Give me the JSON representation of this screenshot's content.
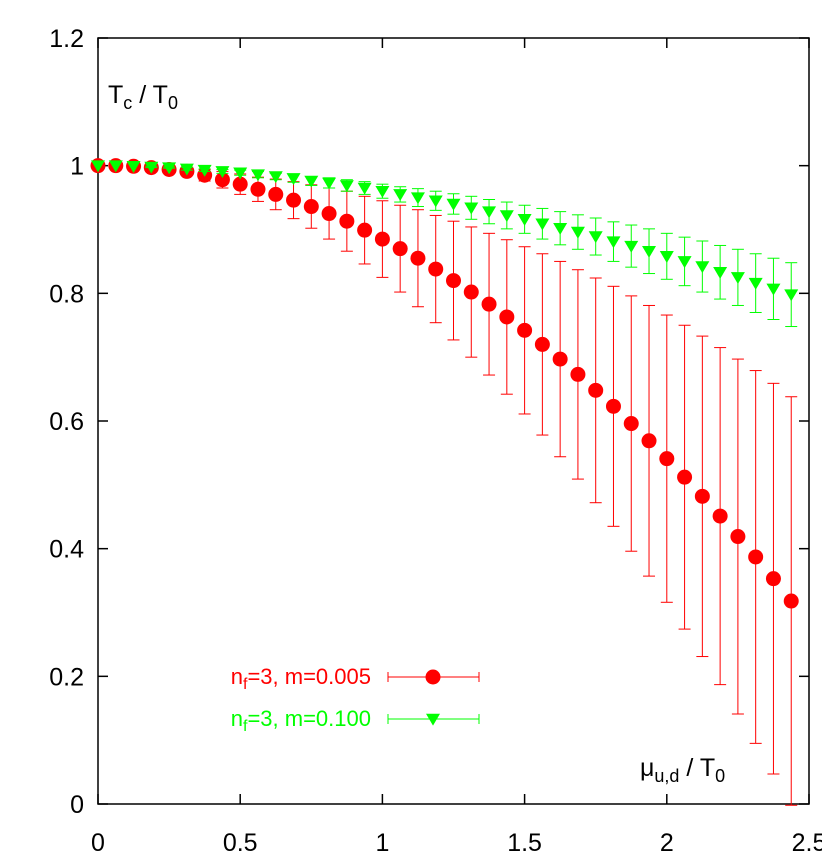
{
  "chart_data": {
    "type": "scatter",
    "ylabel": {
      "main": "T",
      "sub": "c",
      "sep": " / T",
      "sub2": "0"
    },
    "xlabel": {
      "main": "μ",
      "sub": "u,d",
      "sep": " / T",
      "sub2": "0"
    },
    "xlim": [
      0,
      2.5
    ],
    "ylim": [
      0,
      1.2
    ],
    "x_ticks": [
      "0",
      "0.5",
      "1",
      "1.5",
      "2",
      "2.5"
    ],
    "y_ticks": [
      "0",
      "0.2",
      "0.4",
      "0.6",
      "0.8",
      "1",
      "1.2"
    ],
    "x_tick_values": [
      0,
      0.5,
      1,
      1.5,
      2,
      2.5
    ],
    "y_tick_values": [
      0,
      0.2,
      0.4,
      0.6,
      0.8,
      1,
      1.2
    ],
    "grid": false,
    "legend_position": "bottom-left",
    "series": [
      {
        "name": "n_f=3, m=0.005",
        "legend_parts": {
          "a": "n",
          "sub": "f",
          "b": "=3, m=0.005"
        },
        "color": "#ff0000",
        "marker": "circle",
        "x": [
          0.0,
          0.0625,
          0.125,
          0.1875,
          0.25,
          0.3125,
          0.375,
          0.4375,
          0.5,
          0.5625,
          0.625,
          0.6875,
          0.75,
          0.8125,
          0.875,
          0.9375,
          1.0,
          1.0625,
          1.125,
          1.1875,
          1.25,
          1.3125,
          1.375,
          1.4375,
          1.5,
          1.5625,
          1.625,
          1.6875,
          1.75,
          1.8125,
          1.875,
          1.9375,
          2.0,
          2.0625,
          2.125,
          2.1875,
          2.25,
          2.3125,
          2.375,
          2.4375
        ],
        "y": [
          1.0,
          1.0,
          0.999,
          0.997,
          0.994,
          0.991,
          0.985,
          0.978,
          0.971,
          0.963,
          0.955,
          0.946,
          0.936,
          0.925,
          0.913,
          0.899,
          0.885,
          0.87,
          0.855,
          0.838,
          0.82,
          0.802,
          0.783,
          0.763,
          0.742,
          0.72,
          0.697,
          0.673,
          0.648,
          0.623,
          0.596,
          0.569,
          0.541,
          0.512,
          0.482,
          0.451,
          0.419,
          0.387,
          0.353,
          0.318
        ],
        "yerr": [
          0.0,
          0.0,
          0.001,
          0.002,
          0.004,
          0.006,
          0.009,
          0.013,
          0.016,
          0.019,
          0.024,
          0.029,
          0.034,
          0.04,
          0.047,
          0.053,
          0.06,
          0.068,
          0.076,
          0.084,
          0.093,
          0.102,
          0.111,
          0.121,
          0.131,
          0.142,
          0.153,
          0.164,
          0.176,
          0.188,
          0.2,
          0.212,
          0.225,
          0.238,
          0.251,
          0.264,
          0.278,
          0.292,
          0.306,
          0.32
        ]
      },
      {
        "name": "n_f=3, m=0.100",
        "legend_parts": {
          "a": "n",
          "sub": "f",
          "b": "=3, m=0.100"
        },
        "color": "#00ff00",
        "marker": "triangle-down",
        "x": [
          0.0,
          0.0625,
          0.125,
          0.1875,
          0.25,
          0.3125,
          0.375,
          0.4375,
          0.5,
          0.5625,
          0.625,
          0.6875,
          0.75,
          0.8125,
          0.875,
          0.9375,
          1.0,
          1.0625,
          1.125,
          1.1875,
          1.25,
          1.3125,
          1.375,
          1.4375,
          1.5,
          1.5625,
          1.625,
          1.6875,
          1.75,
          1.8125,
          1.875,
          1.9375,
          2.0,
          2.0625,
          2.125,
          2.1875,
          2.25,
          2.3125,
          2.375,
          2.4375
        ],
        "y": [
          1.0,
          1.0,
          0.999,
          0.998,
          0.997,
          0.995,
          0.993,
          0.991,
          0.989,
          0.986,
          0.983,
          0.98,
          0.976,
          0.973,
          0.969,
          0.965,
          0.96,
          0.955,
          0.95,
          0.945,
          0.94,
          0.934,
          0.928,
          0.922,
          0.916,
          0.909,
          0.902,
          0.896,
          0.889,
          0.881,
          0.874,
          0.866,
          0.858,
          0.85,
          0.842,
          0.833,
          0.825,
          0.816,
          0.807,
          0.798
        ],
        "yerr": [
          0.0,
          0.0,
          0.0,
          0.001,
          0.001,
          0.002,
          0.002,
          0.003,
          0.004,
          0.005,
          0.005,
          0.006,
          0.007,
          0.008,
          0.009,
          0.01,
          0.011,
          0.012,
          0.014,
          0.015,
          0.016,
          0.018,
          0.019,
          0.021,
          0.022,
          0.024,
          0.026,
          0.027,
          0.029,
          0.031,
          0.033,
          0.035,
          0.036,
          0.038,
          0.04,
          0.042,
          0.044,
          0.046,
          0.048,
          0.05
        ]
      }
    ]
  }
}
